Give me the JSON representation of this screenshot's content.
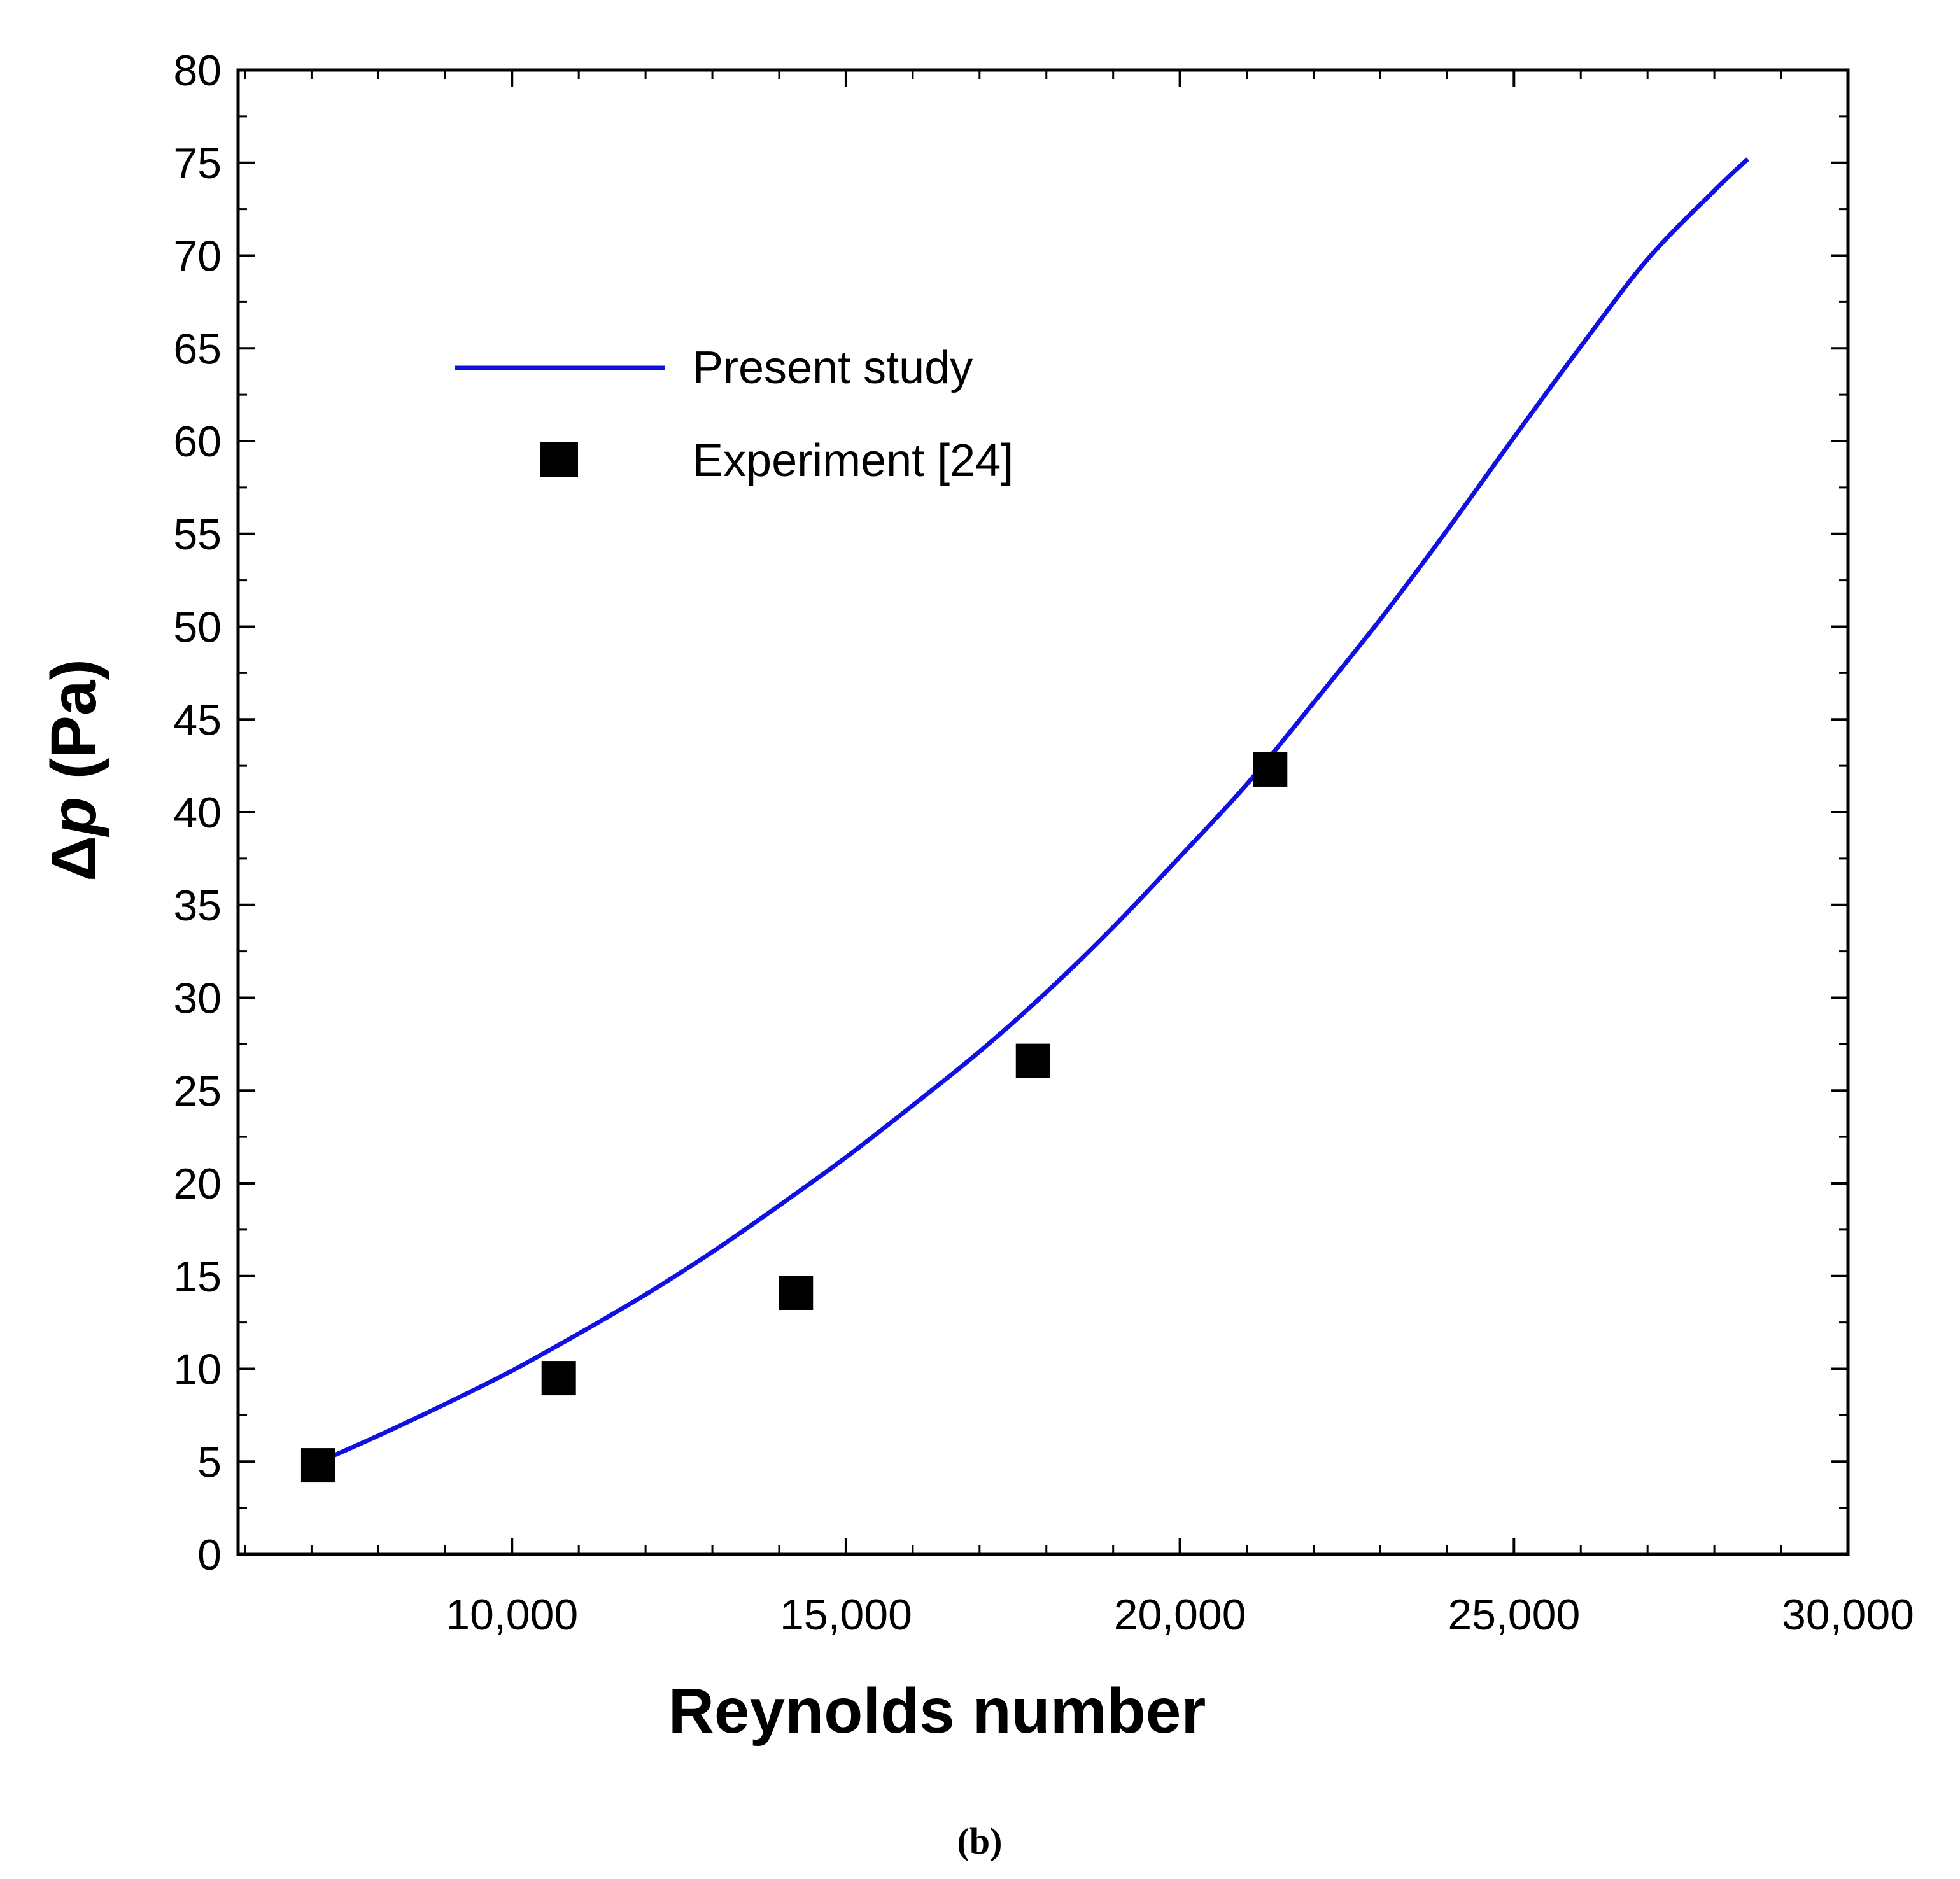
{
  "chart_data": {
    "type": "line",
    "xlabel": "Reynolds number",
    "ylabel_symbol": "Δ",
    "ylabel_var": "p",
    "ylabel_unit": " (Pa)",
    "xlim": [
      5900,
      30000
    ],
    "ylim": [
      0,
      80
    ],
    "x_ticks": [
      10000,
      15000,
      20000,
      25000,
      30000
    ],
    "x_tick_labels": [
      "10,000",
      "15,000",
      "20,000",
      "25,000",
      "30,000"
    ],
    "y_ticks": [
      0,
      5,
      10,
      15,
      20,
      25,
      30,
      35,
      40,
      45,
      50,
      55,
      60,
      65,
      70,
      75,
      80
    ],
    "y_tick_labels": [
      "0",
      "5",
      "10",
      "15",
      "20",
      "25",
      "30",
      "35",
      "40",
      "45",
      "50",
      "55",
      "60",
      "65",
      "70",
      "75",
      "80"
    ],
    "grid": false,
    "legend_position": "upper-left",
    "series": [
      {
        "name": "Present study",
        "kind": "line",
        "color": "#1010e0",
        "x": [
          7000,
          8000,
          9000,
          10000,
          11000,
          12000,
          13000,
          14000,
          15000,
          16000,
          17000,
          18000,
          19000,
          20000,
          21000,
          22000,
          23000,
          24000,
          25000,
          26000,
          27000,
          28000,
          28500
        ],
        "y": [
          4.8,
          6.4,
          8.1,
          9.9,
          11.9,
          14.0,
          16.3,
          18.8,
          21.4,
          24.2,
          27.1,
          30.3,
          33.8,
          37.6,
          41.5,
          45.9,
          50.4,
          55.2,
          60.2,
          65.1,
          69.8,
          73.5,
          75.2
        ]
      },
      {
        "name": "Experiment [24]",
        "kind": "scatter",
        "marker": "square",
        "color": "#000000",
        "x": [
          7100,
          10700,
          14250,
          17800,
          21350
        ],
        "y": [
          4.8,
          9.5,
          14.1,
          26.6,
          42.3
        ]
      }
    ],
    "panel_label": "(b)"
  }
}
